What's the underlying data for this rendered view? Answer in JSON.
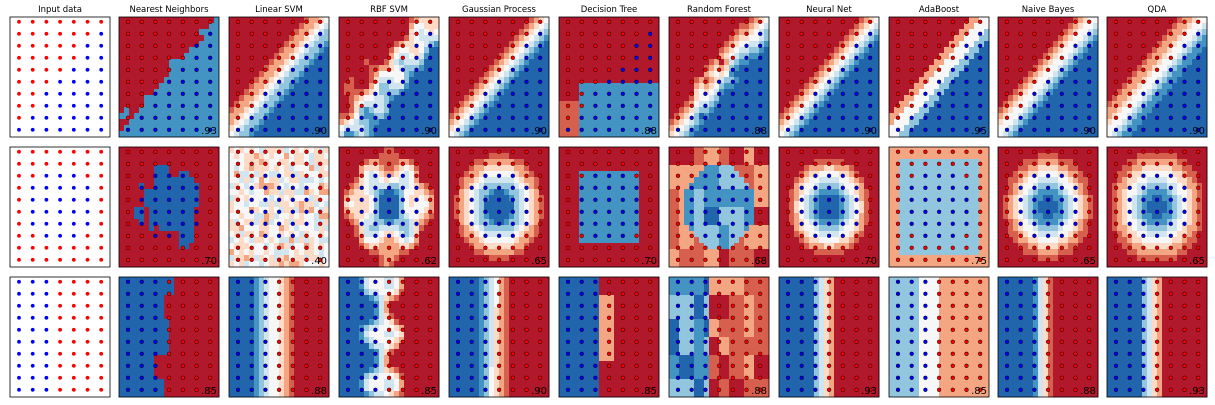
{
  "figure": {
    "title": ""
  },
  "chart_data": {
    "type": "heatmap",
    "columns": [
      "Input data",
      "Nearest Neighbors",
      "Linear SVM",
      "RBF SVM",
      "Gaussian Process",
      "Decision Tree",
      "Random Forest",
      "Neural Net",
      "AdaBoost",
      "Naive Bayes",
      "QDA"
    ],
    "rows": [
      {
        "dataset": "diagonal",
        "scores": [
          ".93",
          ".90",
          ".90",
          ".90",
          ".88",
          ".88",
          ".90",
          ".95",
          ".90",
          ".90"
        ]
      },
      {
        "dataset": "circles",
        "scores": [
          ".70",
          ".40",
          ".62",
          ".65",
          ".70",
          ".68",
          ".70",
          ".75",
          ".65",
          ".65"
        ]
      },
      {
        "dataset": "vertical",
        "scores": [
          ".85",
          ".88",
          ".85",
          ".90",
          ".85",
          ".88",
          ".93",
          ".85",
          ".88",
          ".93"
        ]
      }
    ],
    "colormap": [
      "#b2182b",
      "#d6604d",
      "#f4a582",
      "#fddbc7",
      "#f7f7f7",
      "#d1e5f0",
      "#92c5de",
      "#4393c3",
      "#2166ac"
    ],
    "class_colors": {
      "class_0": "#ff0000",
      "class_1": "#0000ff"
    },
    "xlim": [
      0,
      1
    ],
    "ylim": [
      0,
      1
    ],
    "grid": false,
    "ticks": false
  }
}
